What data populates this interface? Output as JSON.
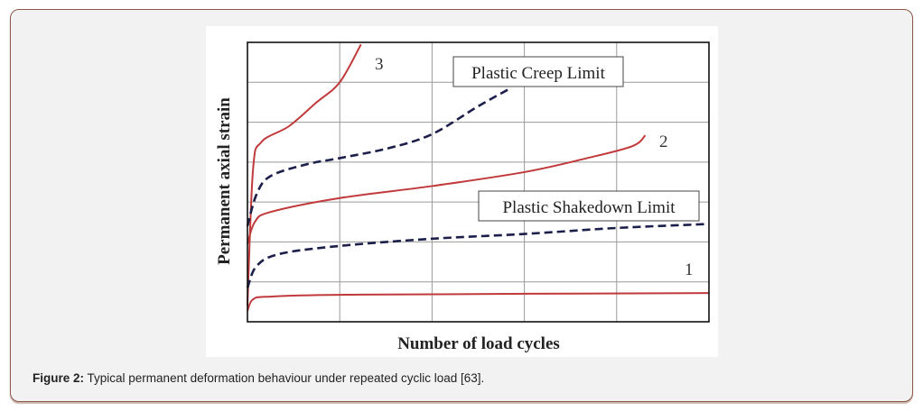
{
  "chart_data": {
    "type": "line",
    "title": "",
    "xlabel": "Number of load cycles",
    "ylabel": "Permanent axial strain",
    "xlim": [
      0,
      5
    ],
    "ylim": [
      0,
      7
    ],
    "grid": true,
    "tick_labels_shown": false,
    "series": [
      {
        "name": "3",
        "style": "solid",
        "color": "#c0393b",
        "x": [
          0,
          0.06,
          0.15,
          0.45,
          0.75,
          1.0,
          1.23
        ],
        "y": [
          0.4,
          3.8,
          4.5,
          4.9,
          5.5,
          6.0,
          6.95
        ]
      },
      {
        "name": "Plastic Creep Limit",
        "style": "dashed",
        "color": "#1c1f4a",
        "x": [
          0,
          0.1,
          0.25,
          0.65,
          1.0,
          1.53,
          2.0,
          2.5,
          2.85
        ],
        "y": [
          2.4,
          3.2,
          3.65,
          3.95,
          4.1,
          4.35,
          4.7,
          5.4,
          5.85
        ]
      },
      {
        "name": "2",
        "style": "solid",
        "color": "#c0393b",
        "x": [
          0,
          0.08,
          0.25,
          1.0,
          2.0,
          3.0,
          3.68,
          4.17,
          4.31
        ],
        "y": [
          1.95,
          2.5,
          2.75,
          3.1,
          3.4,
          3.75,
          4.1,
          4.4,
          4.67
        ]
      },
      {
        "name": "Plastic Shakedown Limit",
        "style": "dashed",
        "color": "#1c1f4a",
        "x": [
          0,
          0.1,
          0.35,
          1.0,
          2.0,
          3.0,
          4.0,
          5.0
        ],
        "y": [
          0.85,
          1.4,
          1.7,
          1.9,
          2.08,
          2.2,
          2.35,
          2.45
        ]
      },
      {
        "name": "1",
        "style": "solid",
        "color": "#c0393b",
        "x": [
          0,
          0.06,
          0.25,
          1.23,
          5.0
        ],
        "y": [
          0.27,
          0.56,
          0.63,
          0.68,
          0.72
        ]
      }
    ],
    "annotations": {
      "curve3": "3",
      "curve2": "2",
      "curve1": "1",
      "creep_box": "Plastic Creep Limit",
      "shakedown_box": "Plastic Shakedown Limit"
    }
  },
  "caption": {
    "label": "Figure 2:",
    "text": " Typical permanent deformation behaviour under repeated cyclic load [63]."
  }
}
